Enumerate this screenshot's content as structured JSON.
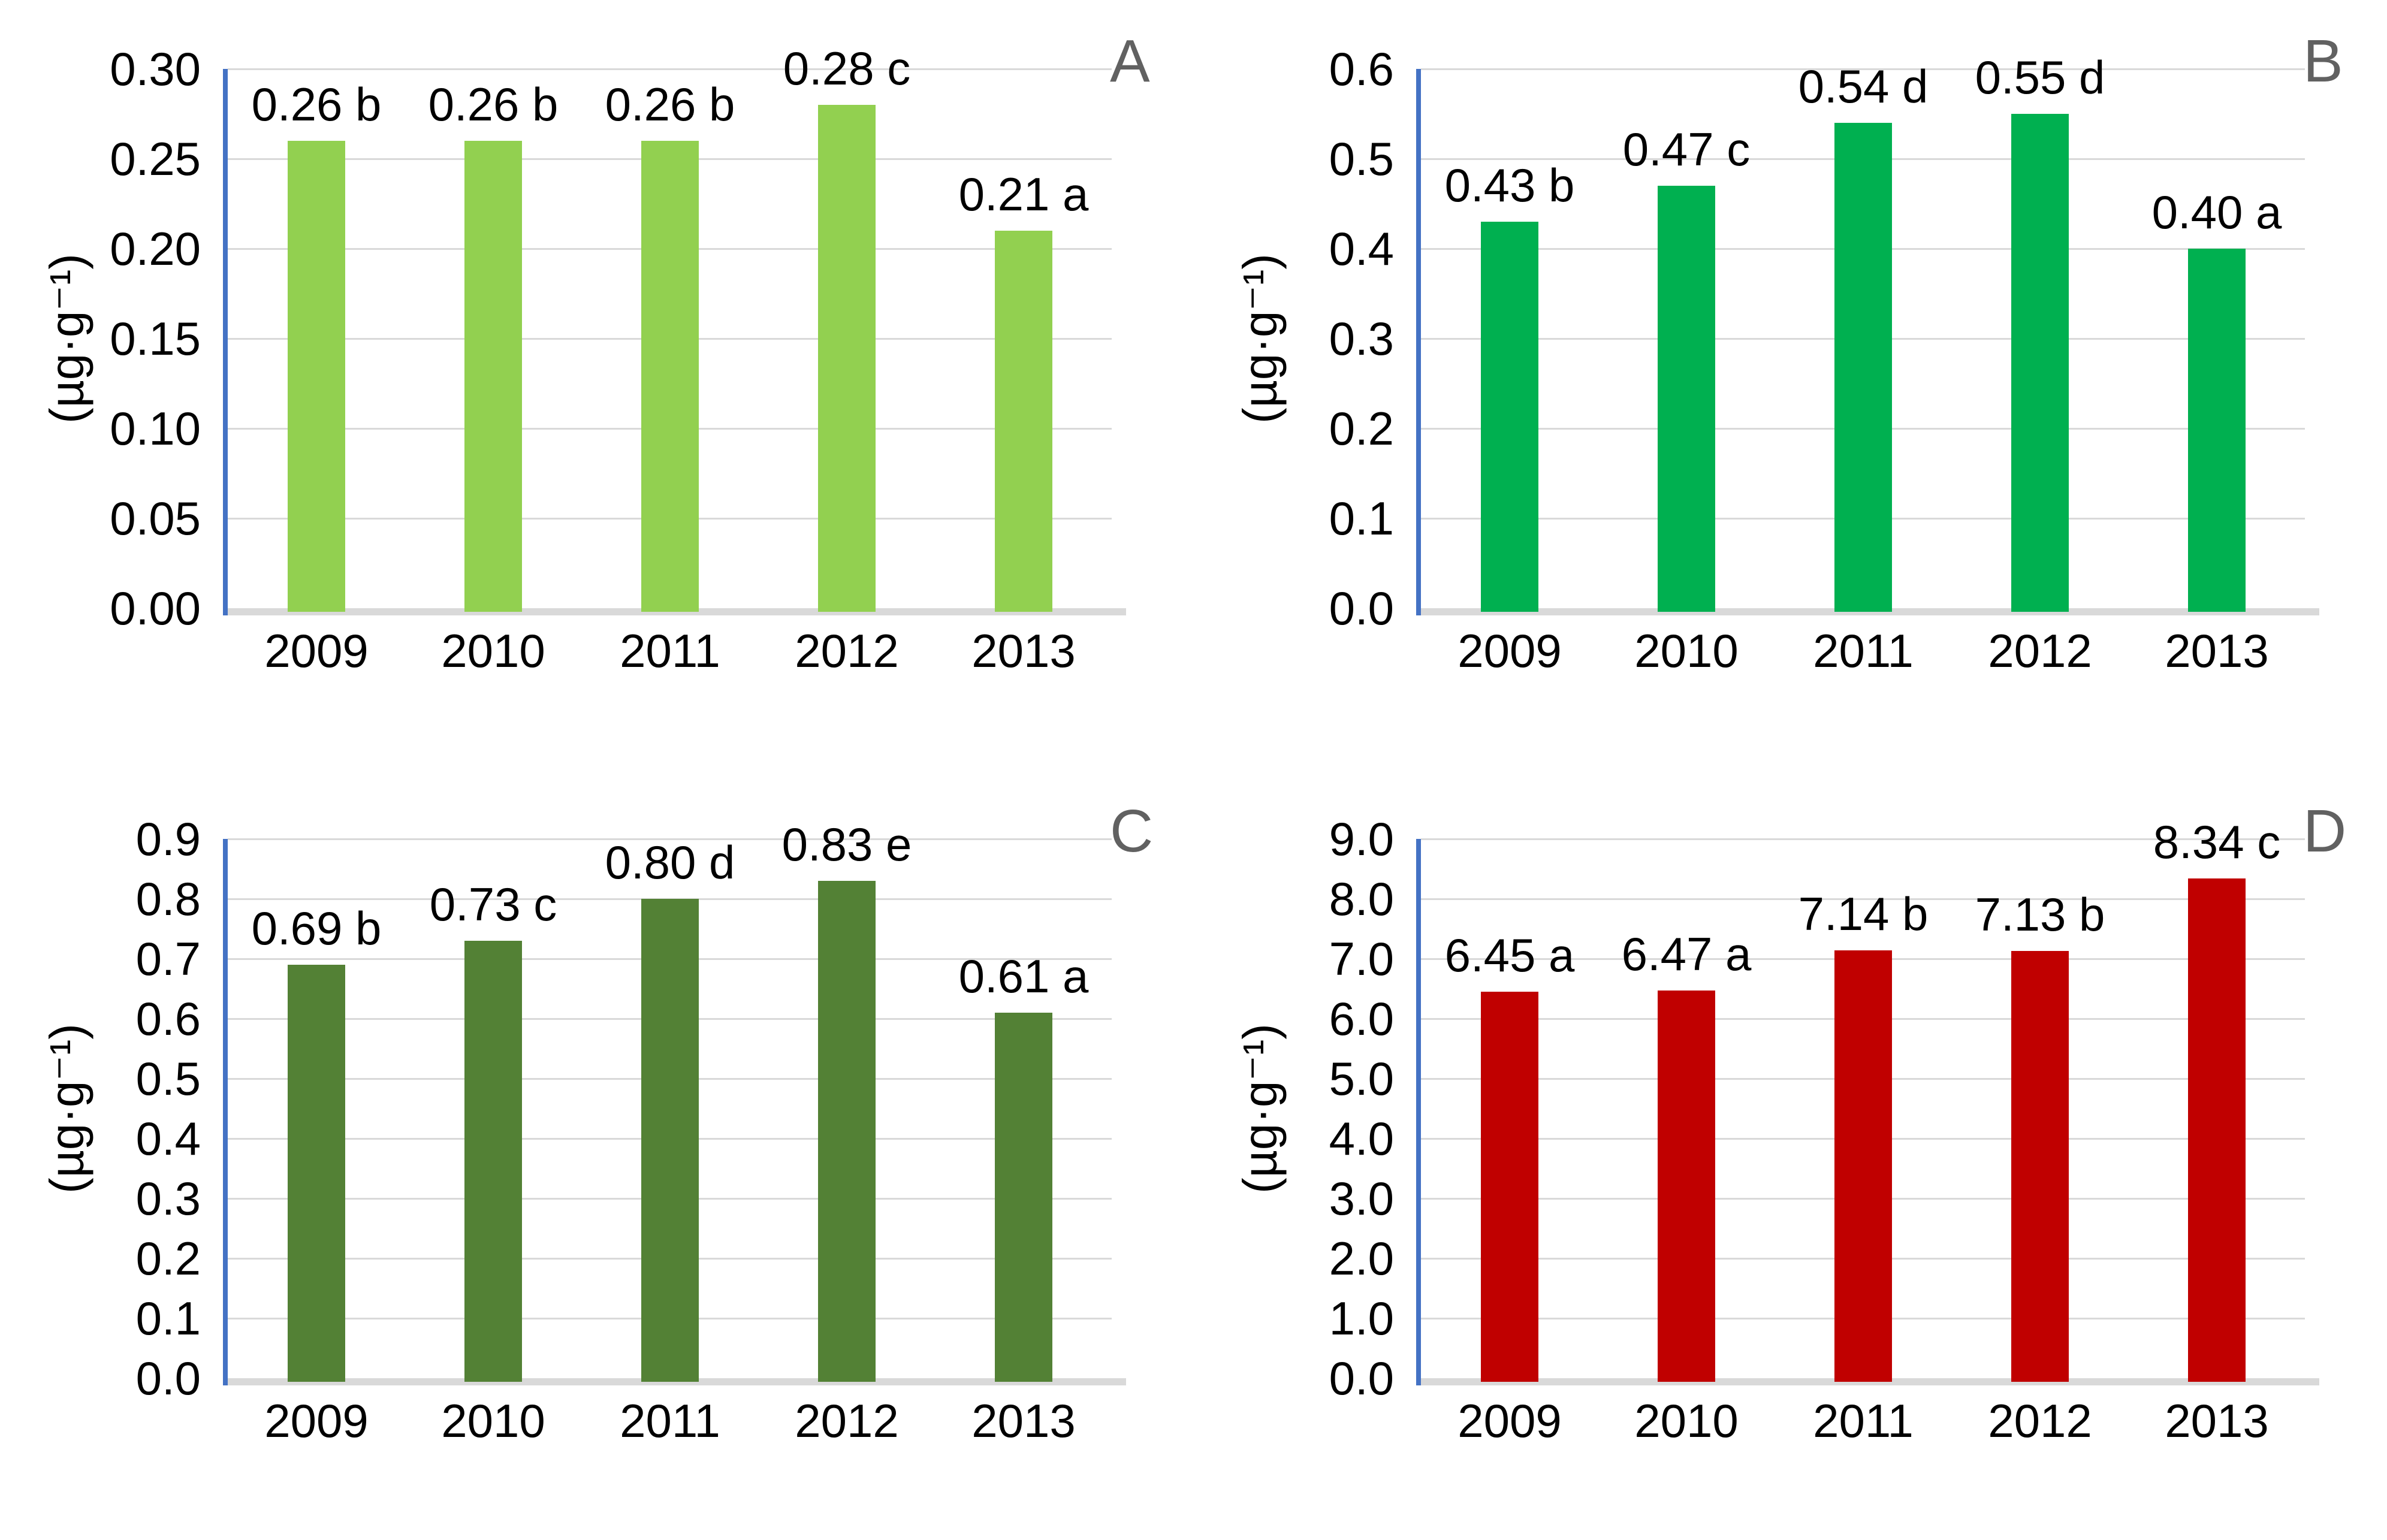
{
  "figure": {
    "description": "Four-panel bar chart figure, panels A-D, annual values 2009-2013 with significance letters",
    "panel_letters": [
      "A",
      "B",
      "C",
      "D"
    ]
  },
  "styles": {
    "axis_color": "#4472C4",
    "gridline_color": "#D9D9D9",
    "baseline_color": "#D9D9D9",
    "text_color": "#000000",
    "panel_letter_color": "#616161",
    "background_color": "#FFFFFF"
  },
  "chart_data": [
    {
      "type": "bar",
      "panel_letter": "A",
      "title": "",
      "xlabel": "",
      "ylabel": "(µg·g⁻¹)",
      "bar_color": "#92D050",
      "categories": [
        "2009",
        "2010",
        "2011",
        "2012",
        "2013"
      ],
      "values": [
        0.26,
        0.26,
        0.26,
        0.28,
        0.21
      ],
      "value_labels": [
        "0.26 b",
        "0.26 b",
        "0.26 b",
        "0.28 c",
        "0.21 a"
      ],
      "ylim": [
        0.0,
        0.3
      ],
      "ytick_labels": [
        "0.30",
        "0.25",
        "0.20",
        "0.15",
        "0.10",
        "0.05",
        "0.00"
      ],
      "grid": true,
      "legend": false
    },
    {
      "type": "bar",
      "panel_letter": "B",
      "title": "",
      "xlabel": "",
      "ylabel": "(µg·g⁻¹)",
      "bar_color": "#00B050",
      "categories": [
        "2009",
        "2010",
        "2011",
        "2012",
        "2013"
      ],
      "values": [
        0.43,
        0.47,
        0.54,
        0.55,
        0.4
      ],
      "value_labels": [
        "0.43 b",
        "0.47 c",
        "0.54 d",
        "0.55 d",
        "0.40 a"
      ],
      "ylim": [
        0.0,
        0.6
      ],
      "ytick_labels": [
        "0.6",
        "0.5",
        "0.4",
        "0.3",
        "0.2",
        "0.1",
        "0.0"
      ],
      "grid": true,
      "legend": false
    },
    {
      "type": "bar",
      "panel_letter": "C",
      "title": "",
      "xlabel": "",
      "ylabel": "(µg·g⁻¹)",
      "bar_color": "#538135",
      "categories": [
        "2009",
        "2010",
        "2011",
        "2012",
        "2013"
      ],
      "values": [
        0.69,
        0.73,
        0.8,
        0.83,
        0.61
      ],
      "value_labels": [
        "0.69 b",
        "0.73 c",
        "0.80 d",
        "0.83 e",
        "0.61 a"
      ],
      "ylim": [
        0.0,
        0.9
      ],
      "ytick_labels": [
        "0.9",
        "0.8",
        "0.7",
        "0.6",
        "0.5",
        "0.4",
        "0.3",
        "0.2",
        "0.1",
        "0.0"
      ],
      "grid": true,
      "legend": false
    },
    {
      "type": "bar",
      "panel_letter": "D",
      "title": "",
      "xlabel": "",
      "ylabel": "(µg·g⁻¹)",
      "bar_color": "#C00000",
      "categories": [
        "2009",
        "2010",
        "2011",
        "2012",
        "2013"
      ],
      "values": [
        6.45,
        6.47,
        7.14,
        7.13,
        8.34
      ],
      "value_labels": [
        "6.45 a",
        "6.47 a",
        "7.14 b",
        "7.13 b",
        "8.34 c"
      ],
      "ylim": [
        0.0,
        9.0
      ],
      "ytick_labels": [
        "9.0",
        "8.0",
        "7.0",
        "6.0",
        "5.0",
        "4.0",
        "3.0",
        "2.0",
        "1.0",
        "0.0"
      ],
      "grid": true,
      "legend": false
    }
  ]
}
